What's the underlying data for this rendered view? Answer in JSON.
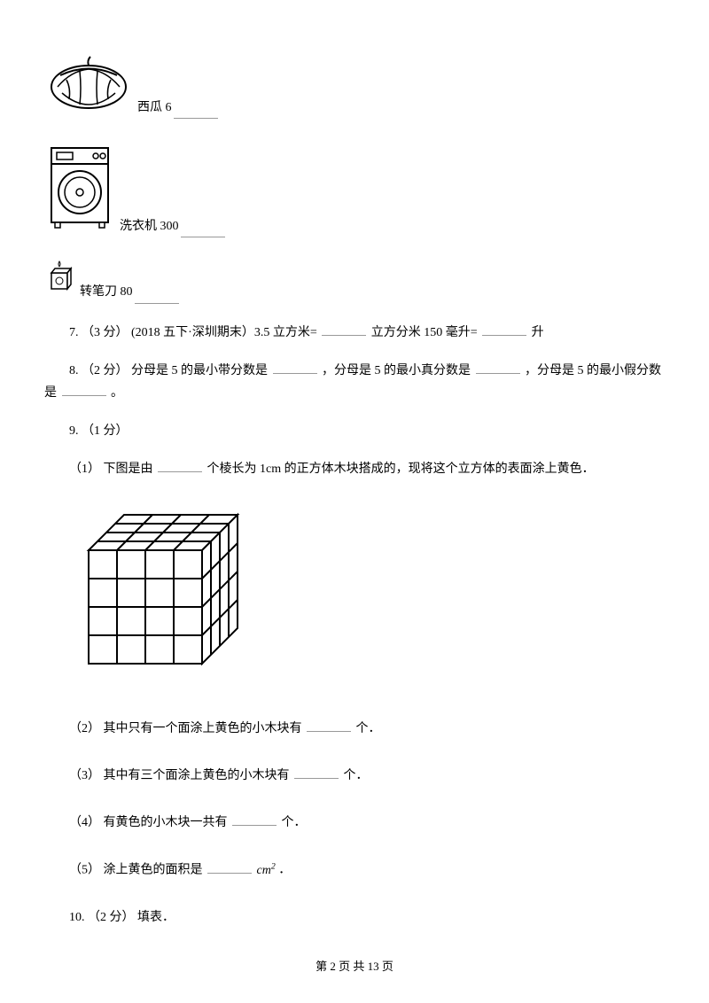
{
  "items": {
    "watermelon": {
      "label": "西瓜 6"
    },
    "washer": {
      "label": "洗衣机 300"
    },
    "sharpener": {
      "label": "转笔刀 80"
    }
  },
  "q7": {
    "prefix": "7. （3 分） (2018 五下·深圳期末）3.5 立方米=",
    "mid": "立方分米   150 毫升=",
    "suffix": "升"
  },
  "q8": {
    "prefix": "8. （2 分） 分母是 5 的最小带分数是",
    "mid1": "，分母是 5 的最小真分数是",
    "mid2": "，分母是 5 的最小假分数",
    "line2_prefix": "是",
    "line2_suffix": "。"
  },
  "q9": {
    "header": "9. （1 分）",
    "sub1_prefix": "（1） 下图是由",
    "sub1_suffix": " 个棱长为 1cm 的正方体木块搭成的，现将这个立方体的表面涂上黄色．",
    "sub2_prefix": "（2） 其中只有一个面涂上黄色的小木块有",
    "sub2_suffix": "个．",
    "sub3_prefix": "（3） 其中有三个面涂上黄色的小木块有",
    "sub3_suffix": "个．",
    "sub4_prefix": "（4） 有黄色的小木块一共有",
    "sub4_suffix": "个．",
    "sub5_prefix": "（5） 涂上黄色的面积是",
    "sub5_unit": "cm",
    "sub5_suffix": " ．"
  },
  "q10": "10. （2 分） 填表．",
  "footer": {
    "prefix": "第 ",
    "page": "2",
    "mid": " 页 共 ",
    "total": "13",
    "suffix": " 页"
  },
  "cube": {
    "rows": 4,
    "cols": 4,
    "cell_size": 32,
    "depth_dx": 10,
    "depth_dy": -10,
    "stroke": "#000000",
    "fill": "#ffffff"
  }
}
